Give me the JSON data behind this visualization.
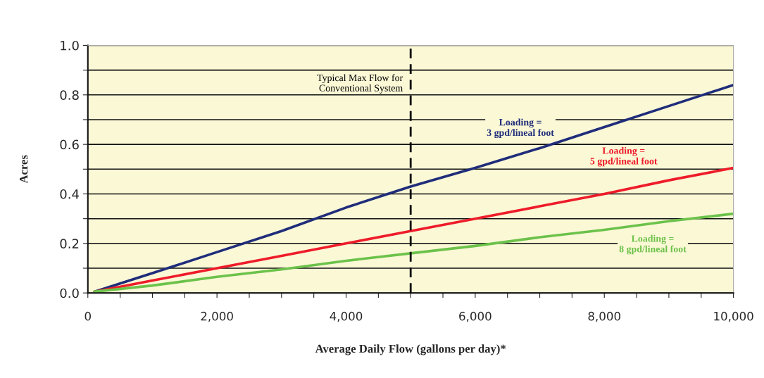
{
  "chart_data": {
    "type": "line",
    "xlabel": "Average Daily Flow (gallons per day)*",
    "ylabel": "Acres",
    "x": [
      100,
      1000,
      2000,
      3000,
      4000,
      5000,
      6000,
      7000,
      8000,
      9000,
      10000
    ],
    "series": [
      {
        "name": "Loading =\n3 gpd/lineal foot",
        "color": "#1f2d7a",
        "values": [
          0.005,
          0.08,
          0.165,
          0.25,
          0.345,
          0.43,
          0.505,
          0.585,
          0.67,
          0.755,
          0.84
        ]
      },
      {
        "name": "Loading =\n5 gpd/lineal foot",
        "color": "#ee1c2a",
        "values": [
          0.005,
          0.05,
          0.1,
          0.15,
          0.2,
          0.25,
          0.3,
          0.35,
          0.4,
          0.455,
          0.505
        ]
      },
      {
        "name": "Loading =\n8 gpd/lineal foot",
        "color": "#6cc24a",
        "values": [
          0.005,
          0.03,
          0.065,
          0.095,
          0.13,
          0.16,
          0.19,
          0.225,
          0.255,
          0.29,
          0.32
        ]
      }
    ],
    "xlim": [
      0,
      10000
    ],
    "xticks": [
      0,
      {
        "value": 500,
        "label": null
      },
      {
        "value": 1000,
        "label": null
      },
      {
        "value": 1500,
        "label": null
      },
      {
        "value": 2000,
        "label": "2,000"
      },
      {
        "value": 2500,
        "label": null
      },
      {
        "value": 3000,
        "label": null
      },
      {
        "value": 3500,
        "label": null
      },
      {
        "value": 4000,
        "label": "4,000"
      },
      {
        "value": 4500,
        "label": null
      },
      {
        "value": 5000,
        "label": null
      },
      {
        "value": 5500,
        "label": null
      },
      {
        "value": 6000,
        "label": "6,000"
      },
      {
        "value": 6500,
        "label": null
      },
      {
        "value": 7000,
        "label": null
      },
      {
        "value": 7500,
        "label": null
      },
      {
        "value": 8000,
        "label": "8,000"
      },
      {
        "value": 8500,
        "label": null
      },
      {
        "value": 9000,
        "label": null
      },
      {
        "value": 9500,
        "label": null
      },
      {
        "value": 10000,
        "label": "10,000"
      }
    ],
    "ylim": [
      0,
      1
    ],
    "yticks": [
      {
        "value": 0,
        "label": "0.0"
      },
      {
        "value": 0.1,
        "label": null
      },
      {
        "value": 0.2,
        "label": "0.2"
      },
      {
        "value": 0.3,
        "label": null
      },
      {
        "value": 0.4,
        "label": "0.4"
      },
      {
        "value": 0.5,
        "label": null
      },
      {
        "value": 0.6,
        "label": "0.6"
      },
      {
        "value": 0.7,
        "label": null
      },
      {
        "value": 0.8,
        "label": "0.8"
      },
      {
        "value": 0.9,
        "label": null
      },
      {
        "value": 1,
        "label": "1.0"
      }
    ],
    "ref_lines": [
      {
        "axis": "x",
        "value": 5000,
        "label": "Typical Max Flow for\nConventional System",
        "color": "#000000",
        "line_style": "dashed"
      }
    ],
    "grid": "y",
    "legend": false,
    "marker": "none",
    "line_style": "solid"
  }
}
